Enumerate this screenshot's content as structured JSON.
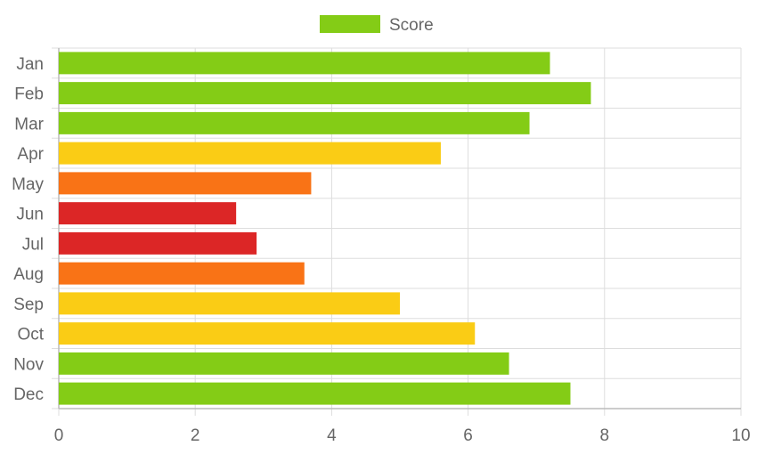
{
  "chart_data": {
    "type": "bar",
    "orientation": "horizontal",
    "categories": [
      "Jan",
      "Feb",
      "Mar",
      "Apr",
      "May",
      "Jun",
      "Jul",
      "Aug",
      "Sep",
      "Oct",
      "Nov",
      "Dec"
    ],
    "series": [
      {
        "name": "Score",
        "values": [
          7.2,
          7.8,
          6.9,
          5.6,
          3.7,
          2.6,
          2.9,
          3.6,
          5.0,
          6.1,
          6.6,
          7.5
        ],
        "colors": [
          "#84cc16",
          "#84cc16",
          "#84cc16",
          "#facc15",
          "#f97316",
          "#dc2626",
          "#dc2626",
          "#f97316",
          "#facc15",
          "#facc15",
          "#84cc16",
          "#84cc16"
        ]
      }
    ],
    "legend": {
      "label": "Score",
      "color": "#84cc16",
      "position": "top-center"
    },
    "xlim": [
      0,
      10
    ],
    "xticks": [
      0,
      2,
      4,
      6,
      8,
      10
    ],
    "grid": true,
    "title": "",
    "xlabel": "",
    "ylabel": ""
  }
}
